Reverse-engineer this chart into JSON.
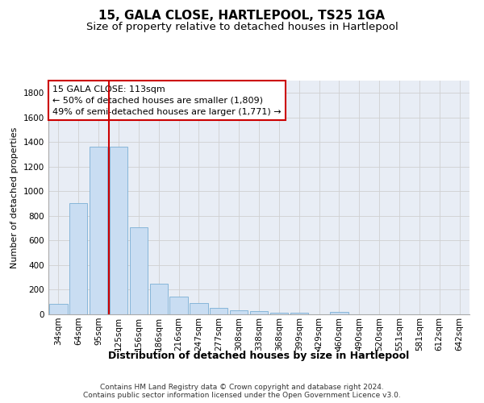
{
  "title": "15, GALA CLOSE, HARTLEPOOL, TS25 1GA",
  "subtitle": "Size of property relative to detached houses in Hartlepool",
  "xlabel": "Distribution of detached houses by size in Hartlepool",
  "ylabel": "Number of detached properties",
  "categories": [
    "34sqm",
    "64sqm",
    "95sqm",
    "125sqm",
    "156sqm",
    "186sqm",
    "216sqm",
    "247sqm",
    "277sqm",
    "308sqm",
    "338sqm",
    "368sqm",
    "399sqm",
    "429sqm",
    "460sqm",
    "490sqm",
    "520sqm",
    "551sqm",
    "581sqm",
    "612sqm",
    "642sqm"
  ],
  "values": [
    85,
    905,
    1360,
    1360,
    710,
    250,
    145,
    90,
    55,
    35,
    25,
    15,
    15,
    0,
    20,
    0,
    0,
    0,
    0,
    0,
    0
  ],
  "bar_color": "#c9ddf2",
  "bar_edge_color": "#7aafd4",
  "vline_x": 2.5,
  "vline_color": "#cc0000",
  "annotation_text": "15 GALA CLOSE: 113sqm\n← 50% of detached houses are smaller (1,809)\n49% of semi-detached houses are larger (1,771) →",
  "annotation_box_color": "#cc0000",
  "ylim": [
    0,
    1900
  ],
  "yticks": [
    0,
    200,
    400,
    600,
    800,
    1000,
    1200,
    1400,
    1600,
    1800
  ],
  "grid_color": "#d0d0d0",
  "bg_color": "#e8edf5",
  "footnote": "Contains HM Land Registry data © Crown copyright and database right 2024.\nContains public sector information licensed under the Open Government Licence v3.0.",
  "title_fontsize": 11,
  "subtitle_fontsize": 9.5,
  "xlabel_fontsize": 9,
  "ylabel_fontsize": 8,
  "tick_fontsize": 7.5,
  "annotation_fontsize": 8,
  "footnote_fontsize": 6.5
}
